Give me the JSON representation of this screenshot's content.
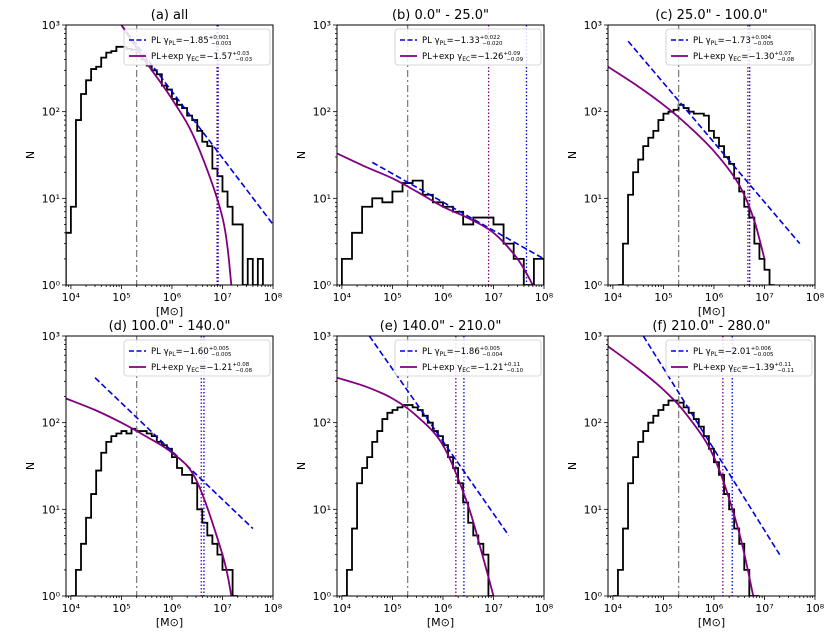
{
  "figure": {
    "xlabel": "[M⊙]",
    "ylabel": "N",
    "x_tick_labels": [
      "10⁴",
      "10⁵",
      "10⁶",
      "10⁷",
      "10⁸"
    ],
    "y_tick_labels": [
      "10⁰",
      "10¹",
      "10²",
      "10³"
    ],
    "legend_pl": "PL γ_PL=",
    "legend_ec": "PL+exp γ_EC="
  },
  "colors": {
    "hist": "#000000",
    "pl": "#0000dd",
    "ec": "#800080",
    "median": "#808080"
  },
  "chart_data": [
    {
      "type": "line",
      "title": "(a) all",
      "xlabel": "[M⊙]",
      "ylabel": "N",
      "xscale": "log",
      "yscale": "log",
      "xlim": [
        8000,
        100000000
      ],
      "ylim": [
        1,
        1000
      ],
      "x_ticks": [
        10000,
        100000,
        1000000,
        10000000,
        100000000
      ],
      "y_ticks": [
        1,
        10,
        100,
        1000
      ],
      "pl_gamma": "−1.85",
      "pl_err_plus": "+0.001",
      "pl_err_minus": "−0.003",
      "ec_gamma": "−1.57",
      "ec_err_plus": "+0.03",
      "ec_err_minus": "−0.03",
      "histogram": {
        "logm": [
          3.9,
          4.0,
          4.1,
          4.2,
          4.3,
          4.4,
          4.5,
          4.6,
          4.7,
          4.8,
          4.9,
          5.0,
          5.1,
          5.2,
          5.3,
          5.4,
          5.5,
          5.6,
          5.7,
          5.8,
          5.9,
          6.0,
          6.1,
          6.2,
          6.3,
          6.4,
          6.5,
          6.6,
          6.7,
          6.8,
          6.9,
          7.0,
          7.1,
          7.2,
          7.3,
          7.4,
          7.5,
          7.6,
          7.7
        ],
        "counts": [
          4,
          8,
          80,
          160,
          230,
          310,
          330,
          420,
          480,
          500,
          560,
          560,
          530,
          520,
          440,
          400,
          340,
          300,
          270,
          200,
          180,
          140,
          120,
          110,
          90,
          80,
          60,
          45,
          40,
          22,
          18,
          12,
          8,
          5,
          5,
          1,
          2,
          1,
          2
        ]
      },
      "pl_fit": {
        "x": [
          100000,
          100000000
        ],
        "y": [
          1000,
          5
        ]
      },
      "ec_fit": {
        "x": [
          100000,
          300000,
          1000000,
          3000000,
          10000000,
          15000000
        ],
        "y": [
          1000,
          380,
          140,
          45,
          6,
          1
        ]
      },
      "median_mass": 200000,
      "vlines": [
        7800000,
        8200000
      ]
    },
    {
      "type": "line",
      "title": "(b) 0.0\"  - 25.0\"",
      "xlabel": "",
      "ylabel": "N",
      "xscale": "log",
      "yscale": "log",
      "xlim": [
        8000,
        100000000
      ],
      "ylim": [
        1,
        1000
      ],
      "x_ticks": [
        10000,
        100000,
        1000000,
        10000000,
        100000000
      ],
      "y_ticks": [
        1,
        10,
        100,
        1000
      ],
      "pl_gamma": "−1.33",
      "pl_err_plus": "+0.022",
      "pl_err_minus": "−0.020",
      "ec_gamma": "−1.26",
      "ec_err_plus": "+0.09",
      "ec_err_minus": "−0.09",
      "histogram": {
        "logm": [
          4.0,
          4.2,
          4.4,
          4.6,
          4.8,
          5.0,
          5.2,
          5.4,
          5.6,
          5.8,
          6.0,
          6.2,
          6.4,
          6.6,
          6.8,
          7.0,
          7.2,
          7.4,
          7.6,
          7.8
        ],
        "counts": [
          2,
          4,
          8,
          10,
          9,
          12,
          15,
          16,
          11,
          9,
          8,
          7,
          5,
          6,
          6,
          5,
          3,
          2,
          1,
          2
        ]
      },
      "pl_fit": {
        "x": [
          40000,
          100000000
        ],
        "y": [
          26,
          2
        ]
      },
      "ec_fit": {
        "x": [
          8000,
          30000,
          100000,
          300000,
          1000000,
          3000000,
          10000000,
          30000000,
          60000000
        ],
        "y": [
          33,
          23,
          17,
          12,
          8,
          6,
          4,
          2,
          1
        ]
      },
      "median_mass": 200000,
      "vlines": [
        8000000,
        45000000
      ]
    },
    {
      "type": "line",
      "title": "(c) 25.0\"  - 100.0\"",
      "xlabel": "[M⊙]",
      "ylabel": "N",
      "xscale": "log",
      "yscale": "log",
      "xlim": [
        8000,
        100000000
      ],
      "ylim": [
        1,
        1000
      ],
      "x_ticks": [
        10000,
        100000,
        1000000,
        10000000,
        100000000
      ],
      "y_ticks": [
        1,
        10,
        100,
        1000
      ],
      "pl_gamma": "−1.73",
      "pl_err_plus": "+0.004",
      "pl_err_minus": "−0.005",
      "ec_gamma": "−1.30",
      "ec_err_plus": "+0.07",
      "ec_err_minus": "−0.08",
      "histogram": {
        "logm": [
          4.1,
          4.2,
          4.3,
          4.4,
          4.5,
          4.6,
          4.7,
          4.8,
          4.9,
          5.0,
          5.1,
          5.2,
          5.3,
          5.4,
          5.5,
          5.6,
          5.7,
          5.8,
          5.9,
          6.0,
          6.1,
          6.2,
          6.3,
          6.4,
          6.5,
          6.6,
          6.7,
          6.8,
          6.9,
          7.0,
          7.1
        ],
        "counts": [
          1,
          3,
          11,
          20,
          28,
          40,
          50,
          60,
          80,
          95,
          100,
          105,
          120,
          110,
          100,
          95,
          95,
          90,
          60,
          50,
          40,
          30,
          25,
          17,
          12,
          8,
          6,
          3,
          2,
          1.5,
          1
        ]
      },
      "pl_fit": {
        "x": [
          20000,
          50000000
        ],
        "y": [
          650,
          3
        ]
      },
      "ec_fit": {
        "x": [
          8000,
          30000,
          100000,
          300000,
          1000000,
          3000000,
          6000000,
          10000000
        ],
        "y": [
          330,
          200,
          120,
          70,
          35,
          15,
          6,
          2
        ]
      },
      "median_mass": 200000,
      "vlines": [
        4700000,
        5100000
      ]
    },
    {
      "type": "line",
      "title": "(d) 100.0\"  - 140.0\"",
      "xlabel": "[M⊙]",
      "ylabel": "N",
      "xscale": "log",
      "yscale": "log",
      "xlim": [
        8000,
        100000000
      ],
      "ylim": [
        1,
        1000
      ],
      "x_ticks": [
        10000,
        100000,
        1000000,
        10000000,
        100000000
      ],
      "y_ticks": [
        1,
        10,
        100,
        1000
      ],
      "pl_gamma": "−1.60",
      "pl_err_plus": "+0.005",
      "pl_err_minus": "−0.005",
      "ec_gamma": "−1.21",
      "ec_err_plus": "+0.08",
      "ec_err_minus": "−0.08",
      "histogram": {
        "logm": [
          4.0,
          4.1,
          4.2,
          4.3,
          4.4,
          4.5,
          4.6,
          4.7,
          4.8,
          4.9,
          5.0,
          5.1,
          5.2,
          5.3,
          5.4,
          5.5,
          5.6,
          5.7,
          5.8,
          5.9,
          6.0,
          6.1,
          6.2,
          6.3,
          6.4,
          6.5,
          6.6,
          6.7,
          6.8,
          6.9,
          7.0,
          7.1,
          7.2
        ],
        "counts": [
          1,
          2,
          4,
          8,
          15,
          28,
          45,
          60,
          70,
          75,
          80,
          75,
          85,
          80,
          80,
          75,
          70,
          60,
          55,
          50,
          40,
          30,
          25,
          25,
          20,
          10,
          7,
          5,
          4,
          3,
          2,
          2,
          1
        ]
      },
      "pl_fit": {
        "x": [
          30000,
          40000000
        ],
        "y": [
          330,
          6
        ]
      },
      "ec_fit": {
        "x": [
          8000,
          30000,
          100000,
          300000,
          1000000,
          3000000,
          10000000,
          15000000
        ],
        "y": [
          190,
          140,
          100,
          70,
          45,
          22,
          3,
          1
        ]
      },
      "median_mass": 200000,
      "vlines": [
        3800000,
        4300000
      ]
    },
    {
      "type": "line",
      "title": "(e) 140.0\"  - 210.0\"",
      "xlabel": "[M⊙]",
      "ylabel": "N",
      "xscale": "log",
      "yscale": "log",
      "xlim": [
        8000,
        100000000
      ],
      "ylim": [
        1,
        1000
      ],
      "x_ticks": [
        10000,
        100000,
        1000000,
        10000000,
        100000000
      ],
      "y_ticks": [
        1,
        10,
        100,
        1000
      ],
      "pl_gamma": "−1.86",
      "pl_err_plus": "+0.005",
      "pl_err_minus": "−0.004",
      "ec_gamma": "−1.21",
      "ec_err_plus": "+0.11",
      "ec_err_minus": "−0.10",
      "histogram": {
        "logm": [
          4.0,
          4.1,
          4.2,
          4.3,
          4.4,
          4.5,
          4.6,
          4.7,
          4.8,
          4.9,
          5.0,
          5.1,
          5.2,
          5.3,
          5.4,
          5.5,
          5.6,
          5.7,
          5.8,
          5.9,
          6.0,
          6.1,
          6.2,
          6.3,
          6.4,
          6.5,
          6.6,
          6.7,
          6.8,
          6.9
        ],
        "counts": [
          1,
          2,
          6,
          20,
          30,
          40,
          60,
          80,
          110,
          130,
          140,
          150,
          160,
          160,
          150,
          140,
          120,
          100,
          80,
          70,
          55,
          40,
          30,
          20,
          12,
          7,
          5,
          4,
          3,
          1
        ]
      },
      "pl_fit": {
        "x": [
          35000,
          20000000
        ],
        "y": [
          1000,
          5
        ]
      },
      "ec_fit": {
        "x": [
          8000,
          30000,
          100000,
          300000,
          1000000,
          3000000,
          6000000,
          10000000
        ],
        "y": [
          330,
          260,
          190,
          120,
          55,
          12,
          3,
          1
        ]
      },
      "median_mass": 200000,
      "vlines": [
        1800000,
        2600000
      ]
    },
    {
      "type": "line",
      "title": "(f) 210.0\"  - 280.0\"",
      "xlabel": "[M⊙]",
      "ylabel": "N",
      "xscale": "log",
      "yscale": "log",
      "xlim": [
        8000,
        100000000
      ],
      "ylim": [
        1,
        1000
      ],
      "x_ticks": [
        10000,
        100000,
        1000000,
        10000000,
        100000000
      ],
      "y_ticks": [
        1,
        10,
        100,
        1000
      ],
      "pl_gamma": "−2.01",
      "pl_err_plus": "+0.006",
      "pl_err_minus": "−0.005",
      "ec_gamma": "−1.39",
      "ec_err_plus": "+0.11",
      "ec_err_minus": "−0.11",
      "histogram": {
        "logm": [
          4.0,
          4.1,
          4.2,
          4.3,
          4.4,
          4.5,
          4.6,
          4.7,
          4.8,
          4.9,
          5.0,
          5.1,
          5.2,
          5.3,
          5.4,
          5.5,
          5.6,
          5.7,
          5.8,
          5.9,
          6.0,
          6.1,
          6.2,
          6.3,
          6.4,
          6.5,
          6.6,
          6.7,
          6.8
        ],
        "counts": [
          1,
          2,
          6,
          20,
          40,
          60,
          80,
          100,
          120,
          140,
          160,
          180,
          180,
          170,
          150,
          130,
          110,
          90,
          70,
          50,
          35,
          25,
          15,
          10,
          6,
          4,
          2,
          1,
          1
        ]
      },
      "pl_fit": {
        "x": [
          40000,
          20000000
        ],
        "y": [
          1000,
          3
        ]
      },
      "ec_fit": {
        "x": [
          8000,
          30000,
          100000,
          300000,
          1000000,
          3000000,
          6000000
        ],
        "y": [
          760,
          430,
          240,
          120,
          40,
          6,
          1
        ]
      },
      "median_mass": 200000,
      "vlines": [
        1500000,
        2300000
      ]
    }
  ]
}
